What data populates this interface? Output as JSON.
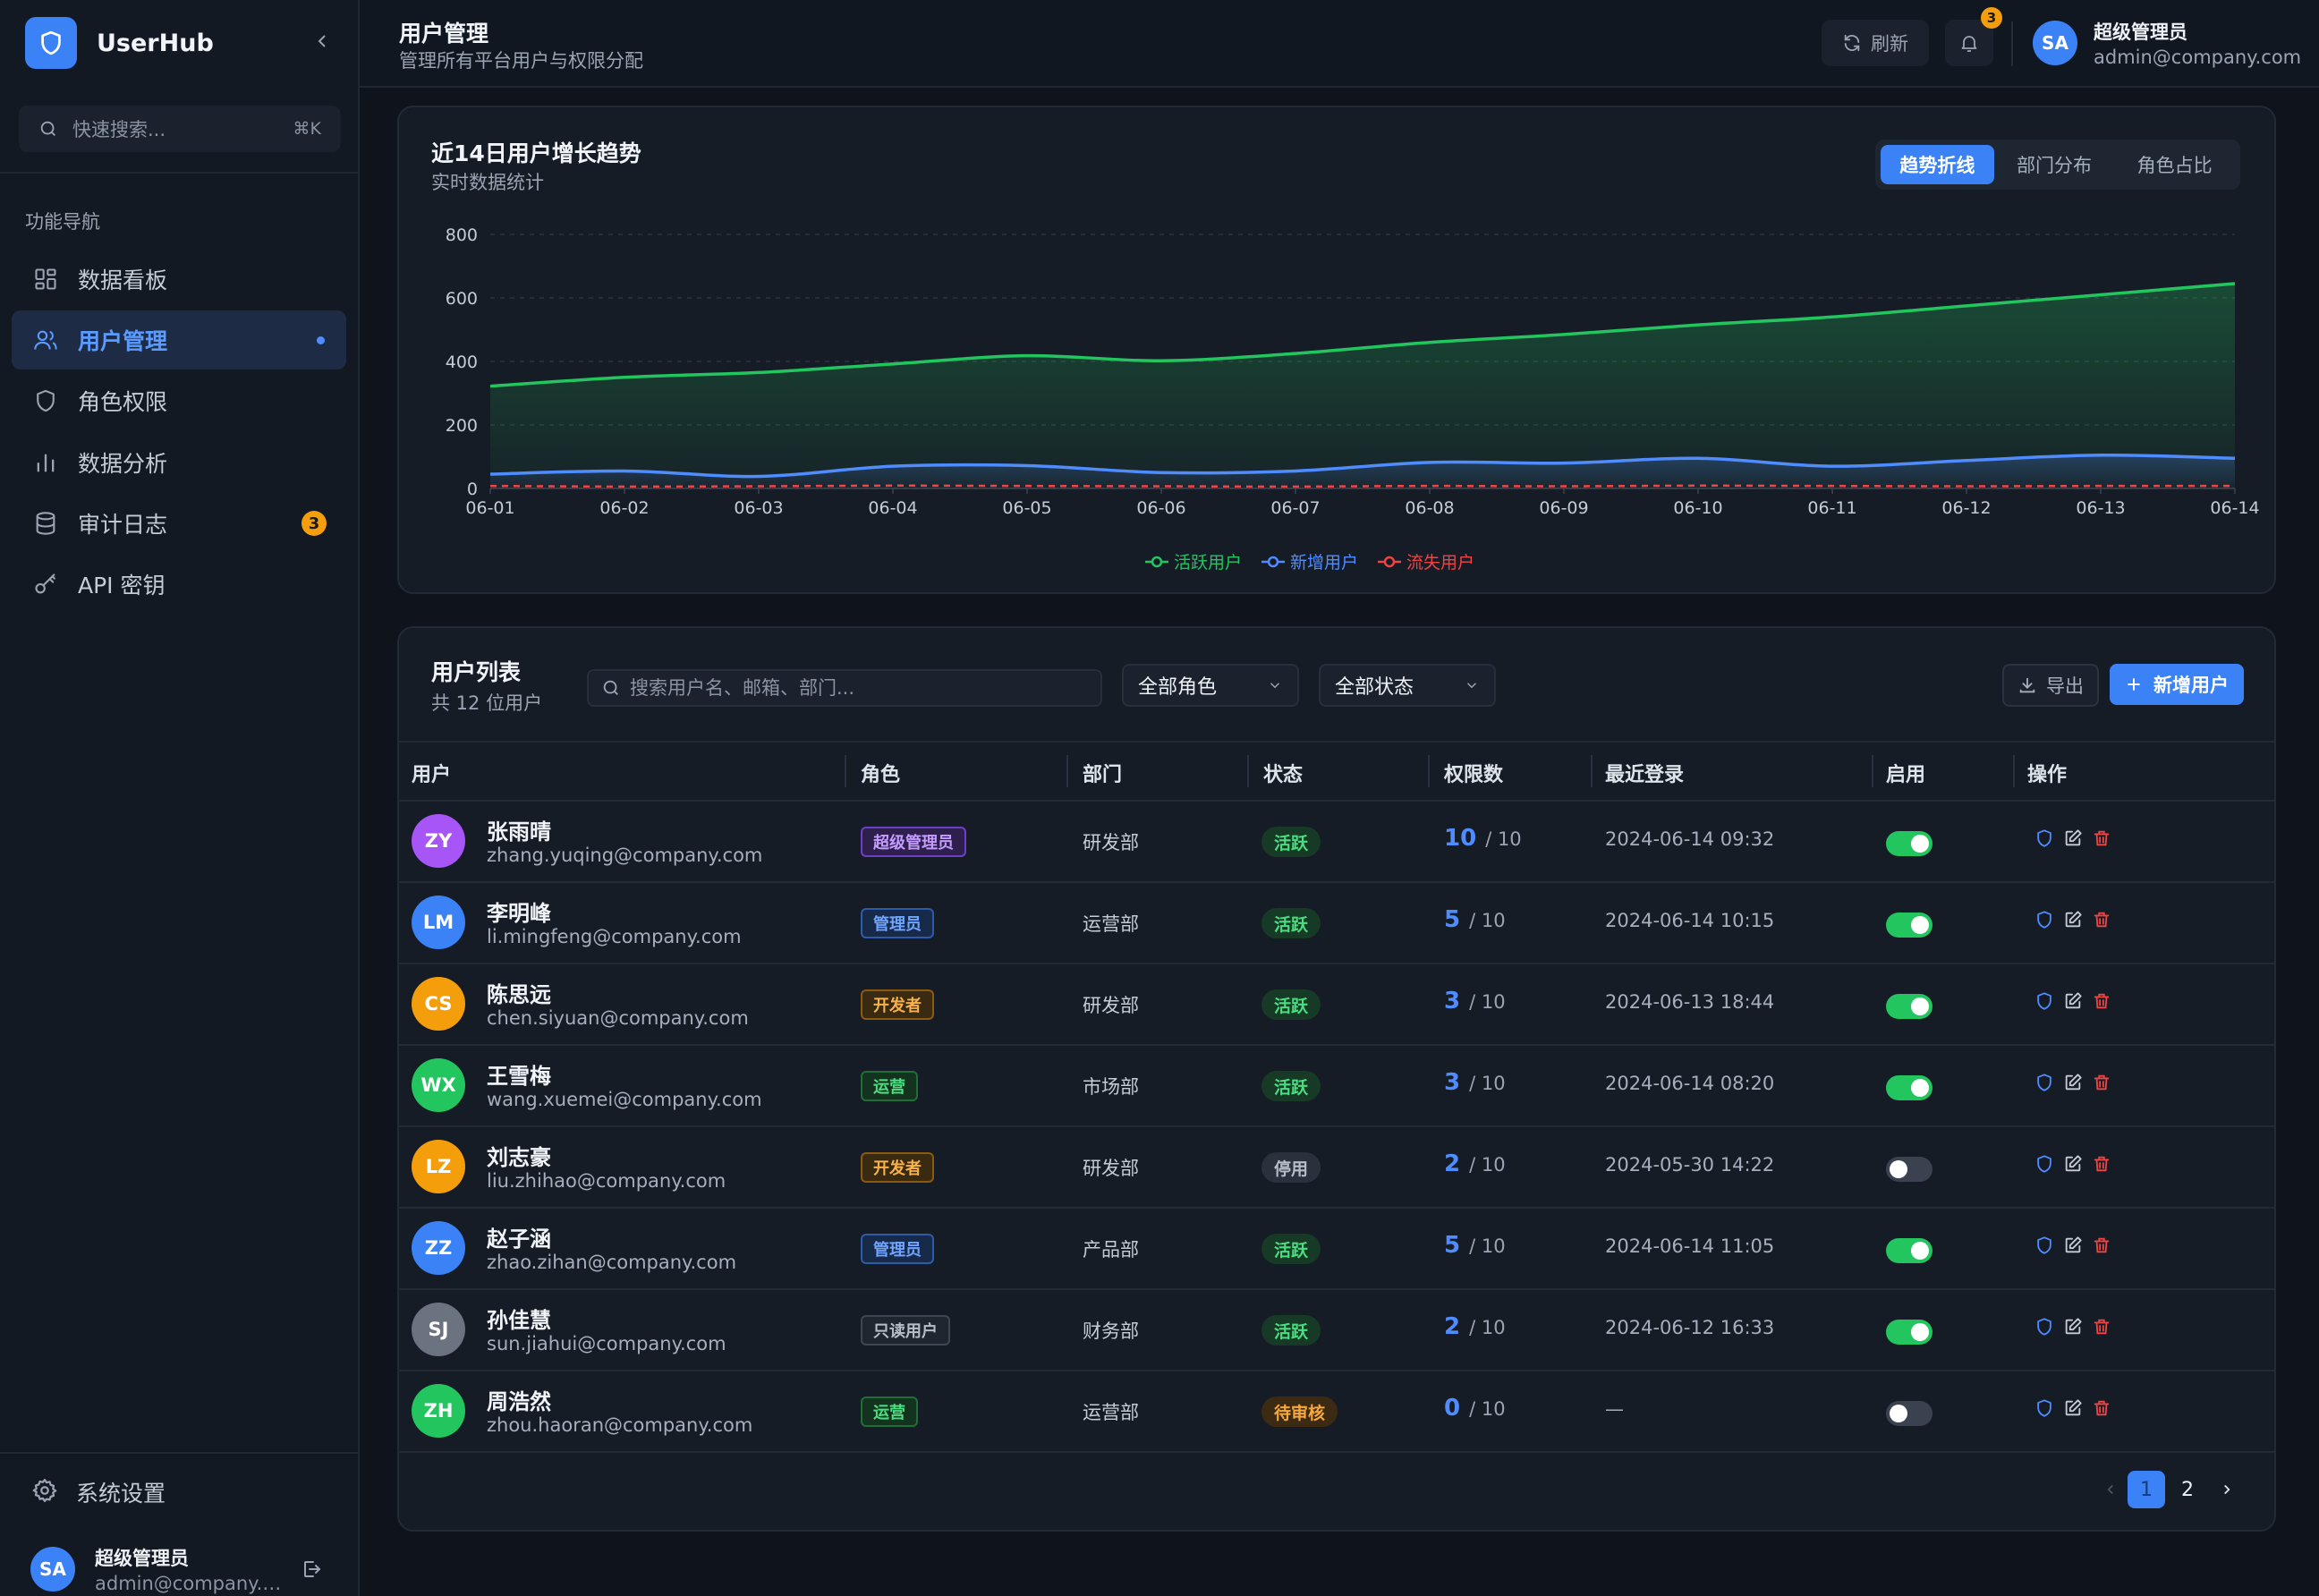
{
  "app": {
    "name": "UserHub",
    "brand_color": "#3b82f6"
  },
  "sidebar": {
    "search_placeholder": "快速搜索...",
    "search_shortcut": "⌘K",
    "nav_title": "功能导航",
    "items": [
      {
        "label": "数据看板",
        "icon": "dashboard-grid-icon",
        "active": false
      },
      {
        "label": "用户管理",
        "icon": "users-icon",
        "active": true
      },
      {
        "label": "角色权限",
        "icon": "shield-icon",
        "active": false
      },
      {
        "label": "数据分析",
        "icon": "bar-chart-icon",
        "active": false
      },
      {
        "label": "审计日志",
        "icon": "database-icon",
        "active": false,
        "badge": "3"
      },
      {
        "label": "API 密钥",
        "icon": "key-icon",
        "active": false
      }
    ],
    "settings_label": "系统设置",
    "user": {
      "initials": "SA",
      "name": "超级管理员",
      "email": "admin@company.com"
    }
  },
  "header": {
    "title": "用户管理",
    "subtitle": "管理所有平台用户与权限分配",
    "refresh_label": "刷新",
    "notification_count": "3",
    "user": {
      "initials": "SA",
      "name": "超级管理员",
      "email": "admin@company.com"
    }
  },
  "chart_card": {
    "title": "近14日用户增长趋势",
    "subtitle": "实时数据统计",
    "tabs": [
      {
        "label": "趋势折线",
        "active": true
      },
      {
        "label": "部门分布",
        "active": false
      },
      {
        "label": "角色占比",
        "active": false
      }
    ]
  },
  "chart_data": {
    "type": "area",
    "x": [
      "06-01",
      "06-02",
      "06-03",
      "06-04",
      "06-05",
      "06-06",
      "06-07",
      "06-08",
      "06-09",
      "06-10",
      "06-11",
      "06-12",
      "06-13",
      "06-14"
    ],
    "ylim": [
      0,
      800
    ],
    "yticks": [
      0,
      200,
      400,
      600,
      800
    ],
    "grid": true,
    "legend_position": "bottom-center",
    "series": [
      {
        "name": "活跃用户",
        "color": "#22c55e",
        "style": "solid-area",
        "values": [
          322,
          350,
          365,
          392,
          418,
          402,
          425,
          460,
          485,
          515,
          540,
          575,
          610,
          645
        ]
      },
      {
        "name": "新增用户",
        "color": "#4f8cff",
        "style": "solid-area",
        "values": [
          45,
          55,
          38,
          70,
          72,
          50,
          55,
          82,
          80,
          95,
          70,
          88,
          105,
          95
        ]
      },
      {
        "name": "流失用户",
        "color": "#ef4444",
        "style": "dashed",
        "values": [
          8,
          6,
          7,
          9,
          8,
          7,
          6,
          8,
          7,
          9,
          8,
          7,
          8,
          8
        ]
      }
    ]
  },
  "table_card": {
    "title": "用户列表",
    "count_label": "共 12 位用户",
    "search_placeholder": "搜索用户名、邮箱、部门...",
    "role_filter": "全部角色",
    "status_filter": "全部状态",
    "export_label": "导出",
    "add_label": "新增用户",
    "columns": [
      "用户",
      "角色",
      "部门",
      "状态",
      "权限数",
      "最近登录",
      "启用",
      "操作"
    ],
    "rows": [
      {
        "initials": "ZY",
        "avatar_color": "#a855f7",
        "name": "张雨晴",
        "email": "zhang.yuqing@company.com",
        "role": "超级管理员",
        "role_kind": "super",
        "dept": "研发部",
        "status": "活跃",
        "status_kind": "active",
        "perm": "10",
        "perm_total": "/ 10",
        "last_login": "2024-06-14 09:32",
        "enabled": true
      },
      {
        "initials": "LM",
        "avatar_color": "#3b82f6",
        "name": "李明峰",
        "email": "li.mingfeng@company.com",
        "role": "管理员",
        "role_kind": "admin",
        "dept": "运营部",
        "status": "活跃",
        "status_kind": "active",
        "perm": "5",
        "perm_total": "/ 10",
        "last_login": "2024-06-14 10:15",
        "enabled": true
      },
      {
        "initials": "CS",
        "avatar_color": "#f59e0b",
        "name": "陈思远",
        "email": "chen.siyuan@company.com",
        "role": "开发者",
        "role_kind": "dev",
        "dept": "研发部",
        "status": "活跃",
        "status_kind": "active",
        "perm": "3",
        "perm_total": "/ 10",
        "last_login": "2024-06-13 18:44",
        "enabled": true
      },
      {
        "initials": "WX",
        "avatar_color": "#22c55e",
        "name": "王雪梅",
        "email": "wang.xuemei@company.com",
        "role": "运营",
        "role_kind": "ops",
        "dept": "市场部",
        "status": "活跃",
        "status_kind": "active",
        "perm": "3",
        "perm_total": "/ 10",
        "last_login": "2024-06-14 08:20",
        "enabled": true
      },
      {
        "initials": "LZ",
        "avatar_color": "#f59e0b",
        "name": "刘志豪",
        "email": "liu.zhihao@company.com",
        "role": "开发者",
        "role_kind": "dev",
        "dept": "研发部",
        "status": "停用",
        "status_kind": "disabled",
        "perm": "2",
        "perm_total": "/ 10",
        "last_login": "2024-05-30 14:22",
        "enabled": false
      },
      {
        "initials": "ZZ",
        "avatar_color": "#3b82f6",
        "name": "赵子涵",
        "email": "zhao.zihan@company.com",
        "role": "管理员",
        "role_kind": "admin",
        "dept": "产品部",
        "status": "活跃",
        "status_kind": "active",
        "perm": "5",
        "perm_total": "/ 10",
        "last_login": "2024-06-14 11:05",
        "enabled": true
      },
      {
        "initials": "SJ",
        "avatar_color": "#6b7280",
        "name": "孙佳慧",
        "email": "sun.jiahui@company.com",
        "role": "只读用户",
        "role_kind": "readonly",
        "dept": "财务部",
        "status": "活跃",
        "status_kind": "active",
        "perm": "2",
        "perm_total": "/ 10",
        "last_login": "2024-06-12 16:33",
        "enabled": true
      },
      {
        "initials": "ZH",
        "avatar_color": "#22c55e",
        "name": "周浩然",
        "email": "zhou.haoran@company.com",
        "role": "运营",
        "role_kind": "ops",
        "dept": "运营部",
        "status": "待审核",
        "status_kind": "pending",
        "perm": "0",
        "perm_total": "/ 10",
        "last_login": "—",
        "enabled": false
      }
    ],
    "pagination": {
      "pages": [
        "1",
        "2"
      ],
      "current": "1"
    }
  }
}
